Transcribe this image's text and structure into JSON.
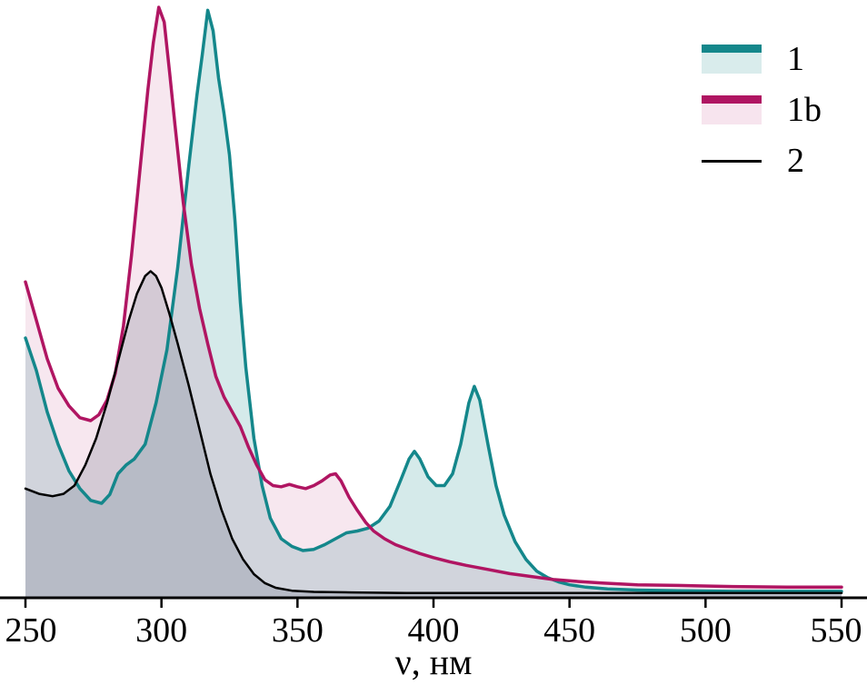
{
  "figure": {
    "kind": "absorption-spectra-plot"
  },
  "chart_data": {
    "type": "line",
    "title": "",
    "xlabel": "ν, нм",
    "ylabel": "",
    "xlim": [
      250,
      550
    ],
    "ylim": [
      0,
      1
    ],
    "xticks": [
      250,
      300,
      350,
      400,
      450,
      500,
      550
    ],
    "xtick_labels": [
      "250",
      "300",
      "350",
      "400",
      "450",
      "500",
      "550"
    ],
    "grid": false,
    "legend_position": "top-right",
    "axis_color": "#000000",
    "series": [
      {
        "name": "1",
        "label": "1",
        "color": "#14878b",
        "fill": "rgba(23,138,141,0.18)",
        "legend_fill": "#d9ecec",
        "legend_swatch": "band",
        "width": 3.5,
        "points": [
          [
            250,
            0.44
          ],
          [
            254,
            0.385
          ],
          [
            258,
            0.315
          ],
          [
            262,
            0.26
          ],
          [
            266,
            0.215
          ],
          [
            270,
            0.185
          ],
          [
            274,
            0.165
          ],
          [
            278,
            0.16
          ],
          [
            281,
            0.175
          ],
          [
            284,
            0.21
          ],
          [
            287,
            0.225
          ],
          [
            290,
            0.235
          ],
          [
            294,
            0.26
          ],
          [
            298,
            0.33
          ],
          [
            302,
            0.42
          ],
          [
            306,
            0.56
          ],
          [
            310,
            0.73
          ],
          [
            313,
            0.85
          ],
          [
            315,
            0.92
          ],
          [
            317,
            0.995
          ],
          [
            319,
            0.96
          ],
          [
            321,
            0.88
          ],
          [
            323,
            0.82
          ],
          [
            325,
            0.75
          ],
          [
            327,
            0.64
          ],
          [
            329,
            0.5
          ],
          [
            331,
            0.39
          ],
          [
            334,
            0.27
          ],
          [
            337,
            0.19
          ],
          [
            340,
            0.135
          ],
          [
            344,
            0.1
          ],
          [
            348,
            0.087
          ],
          [
            352,
            0.08
          ],
          [
            356,
            0.082
          ],
          [
            360,
            0.09
          ],
          [
            364,
            0.1
          ],
          [
            368,
            0.11
          ],
          [
            372,
            0.113
          ],
          [
            376,
            0.118
          ],
          [
            380,
            0.13
          ],
          [
            384,
            0.155
          ],
          [
            388,
            0.2
          ],
          [
            391,
            0.235
          ],
          [
            393,
            0.248
          ],
          [
            395,
            0.235
          ],
          [
            398,
            0.205
          ],
          [
            401,
            0.19
          ],
          [
            404,
            0.19
          ],
          [
            407,
            0.21
          ],
          [
            410,
            0.26
          ],
          [
            413,
            0.33
          ],
          [
            415,
            0.358
          ],
          [
            417,
            0.335
          ],
          [
            420,
            0.26
          ],
          [
            423,
            0.19
          ],
          [
            426,
            0.14
          ],
          [
            430,
            0.095
          ],
          [
            434,
            0.065
          ],
          [
            438,
            0.045
          ],
          [
            442,
            0.034
          ],
          [
            446,
            0.027
          ],
          [
            450,
            0.022
          ],
          [
            456,
            0.018
          ],
          [
            464,
            0.015
          ],
          [
            475,
            0.013
          ],
          [
            490,
            0.012
          ],
          [
            510,
            0.011
          ],
          [
            530,
            0.011
          ],
          [
            550,
            0.011
          ]
        ]
      },
      {
        "name": "1b",
        "label": "1b",
        "color": "#b01562",
        "fill": "rgba(176,18,102,0.10)",
        "legend_fill": "#f7e4ee",
        "legend_swatch": "band",
        "width": 3.5,
        "points": [
          [
            250,
            0.535
          ],
          [
            254,
            0.47
          ],
          [
            258,
            0.405
          ],
          [
            262,
            0.355
          ],
          [
            266,
            0.325
          ],
          [
            270,
            0.305
          ],
          [
            274,
            0.3
          ],
          [
            277,
            0.31
          ],
          [
            280,
            0.335
          ],
          [
            283,
            0.38
          ],
          [
            286,
            0.46
          ],
          [
            289,
            0.58
          ],
          [
            292,
            0.72
          ],
          [
            295,
            0.86
          ],
          [
            297,
            0.94
          ],
          [
            299,
            1.0
          ],
          [
            301,
            0.975
          ],
          [
            303,
            0.89
          ],
          [
            305,
            0.8
          ],
          [
            308,
            0.67
          ],
          [
            311,
            0.565
          ],
          [
            314,
            0.49
          ],
          [
            317,
            0.43
          ],
          [
            320,
            0.375
          ],
          [
            323,
            0.34
          ],
          [
            326,
            0.315
          ],
          [
            329,
            0.29
          ],
          [
            332,
            0.255
          ],
          [
            335,
            0.225
          ],
          [
            338,
            0.2
          ],
          [
            341,
            0.19
          ],
          [
            344,
            0.188
          ],
          [
            347,
            0.192
          ],
          [
            350,
            0.188
          ],
          [
            353,
            0.185
          ],
          [
            356,
            0.19
          ],
          [
            359,
            0.198
          ],
          [
            362,
            0.208
          ],
          [
            364,
            0.21
          ],
          [
            366,
            0.198
          ],
          [
            369,
            0.17
          ],
          [
            372,
            0.148
          ],
          [
            375,
            0.128
          ],
          [
            378,
            0.113
          ],
          [
            382,
            0.1
          ],
          [
            386,
            0.09
          ],
          [
            390,
            0.083
          ],
          [
            395,
            0.075
          ],
          [
            400,
            0.068
          ],
          [
            406,
            0.061
          ],
          [
            412,
            0.055
          ],
          [
            420,
            0.048
          ],
          [
            428,
            0.041
          ],
          [
            436,
            0.036
          ],
          [
            444,
            0.031
          ],
          [
            452,
            0.028
          ],
          [
            462,
            0.025
          ],
          [
            475,
            0.022
          ],
          [
            490,
            0.021
          ],
          [
            510,
            0.019
          ],
          [
            530,
            0.018
          ],
          [
            550,
            0.018
          ]
        ]
      },
      {
        "name": "2",
        "label": "2",
        "color": "#000000",
        "fill": "rgba(90,100,125,0.22)",
        "legend_fill": "transparent",
        "legend_swatch": "line",
        "width": 2.5,
        "points": [
          [
            250,
            0.185
          ],
          [
            255,
            0.176
          ],
          [
            260,
            0.172
          ],
          [
            264,
            0.176
          ],
          [
            268,
            0.19
          ],
          [
            272,
            0.225
          ],
          [
            276,
            0.27
          ],
          [
            280,
            0.33
          ],
          [
            284,
            0.4
          ],
          [
            288,
            0.47
          ],
          [
            291,
            0.515
          ],
          [
            294,
            0.545
          ],
          [
            296,
            0.553
          ],
          [
            298,
            0.545
          ],
          [
            300,
            0.525
          ],
          [
            303,
            0.48
          ],
          [
            306,
            0.43
          ],
          [
            310,
            0.36
          ],
          [
            314,
            0.285
          ],
          [
            318,
            0.21
          ],
          [
            322,
            0.15
          ],
          [
            326,
            0.1
          ],
          [
            330,
            0.065
          ],
          [
            334,
            0.04
          ],
          [
            338,
            0.025
          ],
          [
            342,
            0.017
          ],
          [
            348,
            0.012
          ],
          [
            356,
            0.01
          ],
          [
            370,
            0.009
          ],
          [
            390,
            0.008
          ],
          [
            420,
            0.008
          ],
          [
            460,
            0.008
          ],
          [
            500,
            0.008
          ],
          [
            550,
            0.008
          ]
        ]
      }
    ]
  }
}
